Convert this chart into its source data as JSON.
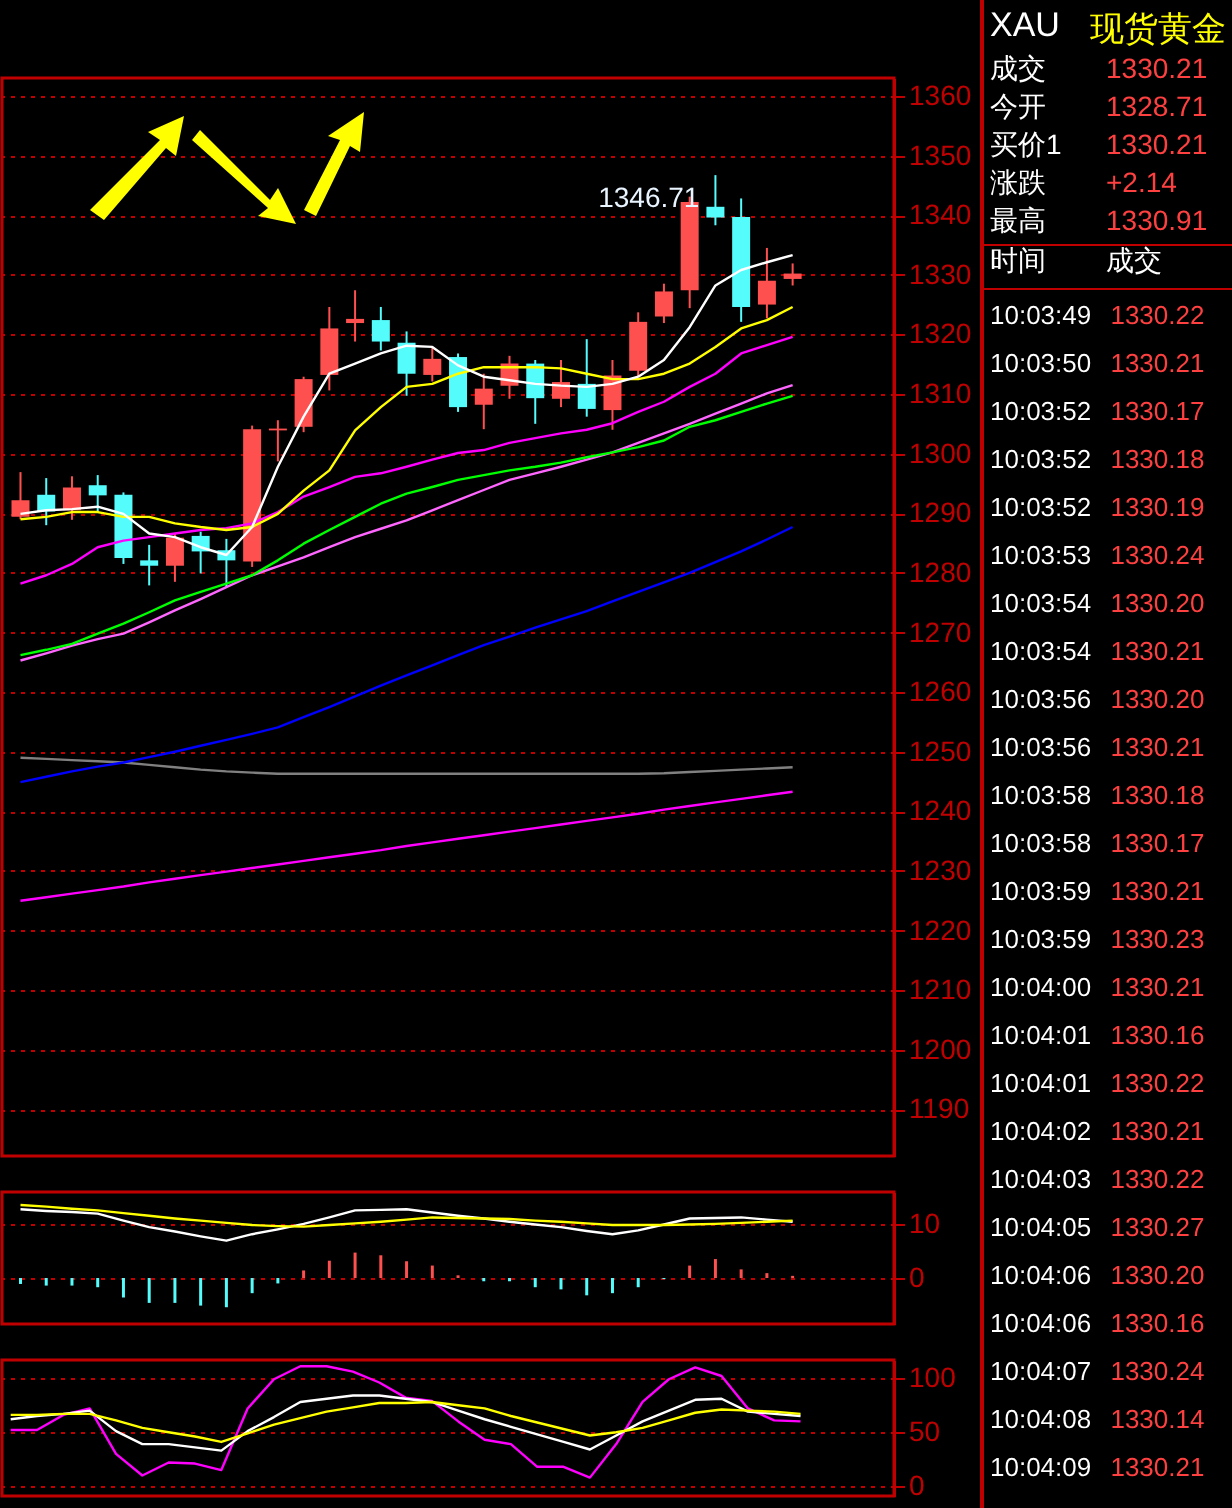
{
  "chart_data": [
    {
      "type": "candlestick",
      "categories": [
        null,
        null,
        null,
        null,
        null,
        null,
        null,
        null,
        null,
        null,
        null,
        null,
        null,
        null,
        null,
        null,
        null,
        null,
        null,
        null,
        null,
        null,
        null,
        null,
        null,
        null,
        null,
        null,
        null,
        null,
        null
      ],
      "ohlc": [
        [
          1289.4,
          1296.9,
          1289.0,
          1292.2
        ],
        [
          1293.1,
          1295.9,
          1288.0,
          1290.3
        ],
        [
          1290.5,
          1296.2,
          1288.9,
          1294.3
        ],
        [
          1294.7,
          1296.4,
          1290.2,
          1293.0
        ],
        [
          1293.1,
          1293.5,
          1281.5,
          1282.5
        ],
        [
          1282.1,
          1284.7,
          1277.9,
          1281.2
        ],
        [
          1281.2,
          1286.6,
          1278.5,
          1285.9
        ],
        [
          1286.2,
          1286.9,
          1279.9,
          1283.6
        ],
        [
          1283.8,
          1285.7,
          1277.6,
          1282.1
        ],
        [
          1281.9,
          1304.7,
          1281.0,
          1304.1
        ],
        [
          1303.9,
          1305.6,
          1298.7,
          1304.2
        ],
        [
          1304.5,
          1312.9,
          1303.6,
          1312.5
        ],
        [
          1313.2,
          1324.6,
          1310.6,
          1321.0
        ],
        [
          1321.9,
          1327.4,
          1318.8,
          1322.6
        ],
        [
          1322.4,
          1324.6,
          1317.3,
          1318.8
        ],
        [
          1318.6,
          1320.5,
          1309.7,
          1313.4
        ],
        [
          1313.2,
          1317.9,
          1312.1,
          1315.9
        ],
        [
          1316.2,
          1316.8,
          1307.0,
          1307.8
        ],
        [
          1308.2,
          1313.4,
          1304.1,
          1310.9
        ],
        [
          1311.4,
          1316.4,
          1309.2,
          1315.1
        ],
        [
          1315.1,
          1315.7,
          1305.0,
          1309.3
        ],
        [
          1309.2,
          1315.7,
          1307.8,
          1312.0
        ],
        [
          1311.7,
          1319.2,
          1306.2,
          1307.5
        ],
        [
          1307.3,
          1315.7,
          1304.0,
          1313.1
        ],
        [
          1313.9,
          1323.7,
          1312.8,
          1322.1
        ],
        [
          1323.0,
          1328.5,
          1321.9,
          1327.2
        ],
        [
          1327.4,
          1343.1,
          1324.4,
          1342.2
        ],
        [
          1341.4,
          1346.71,
          1338.3,
          1339.6
        ],
        [
          1339.7,
          1342.8,
          1322.1,
          1324.6
        ],
        [
          1325.0,
          1334.5,
          1322.7,
          1329.0
        ],
        [
          1329.3,
          1331.9,
          1328.2,
          1330.2
        ]
      ],
      "colors": [
        "#ff5050",
        "#54fcfc",
        "#ff5050",
        "#54fcfc",
        "#54fcfc",
        "#54fcfc",
        "#ff5050",
        "#54fcfc",
        "#54fcfc",
        "#ff5050",
        "#ff5050",
        "#ff5050",
        "#ff5050",
        "#ff5050",
        "#54fcfc",
        "#54fcfc",
        "#ff5050",
        "#54fcfc",
        "#ff5050",
        "#ff5050",
        "#54fcfc",
        "#ff5050",
        "#54fcfc",
        "#ff5050",
        "#ff5050",
        "#ff5050",
        "#ff5050",
        "#54fcfc",
        "#54fcfc",
        "#ff5050",
        "#ff5050"
      ],
      "ylim": [
        1182.2,
        1363
      ],
      "yticks": [
        1190,
        1200,
        1210,
        1220,
        1230,
        1240,
        1250,
        1260,
        1270,
        1280,
        1290,
        1300,
        1310,
        1320,
        1330,
        1340,
        1350,
        1360
      ],
      "tick_labels": "y",
      "grid": "y",
      "annotations": [
        "1346.71"
      ],
      "series": [
        {
          "type": "line",
          "color": "#808080",
          "values": [
            1249.0,
            1248.8,
            1248.6,
            1248.4,
            1248.2,
            1247.8,
            1247.4,
            1247.0,
            1246.7,
            1246.5,
            1246.3,
            1246.3,
            1246.3,
            1246.3,
            1246.3,
            1246.3,
            1246.3,
            1246.3,
            1246.3,
            1246.3,
            1246.3,
            1246.3,
            1246.3,
            1246.3,
            1246.3,
            1246.4,
            1246.6,
            1246.8,
            1247.0,
            1247.2,
            1247.4
          ]
        },
        {
          "type": "line",
          "color": "#ff00ff",
          "values": [
            1225.0,
            1225.6,
            1226.2,
            1226.8,
            1227.4,
            1228.1,
            1228.7,
            1229.3,
            1229.9,
            1230.5,
            1231.1,
            1231.7,
            1232.3,
            1232.9,
            1233.5,
            1234.2,
            1234.8,
            1235.4,
            1236.0,
            1236.6,
            1237.2,
            1237.8,
            1238.4,
            1239.0,
            1239.6,
            1240.3,
            1240.9,
            1241.5,
            1242.1,
            1242.7,
            1243.3
          ]
        },
        {
          "type": "line",
          "color": "#0000ff",
          "values": [
            1244.9,
            1245.8,
            1246.7,
            1247.5,
            1248.2,
            1249.1,
            1250.0,
            1251.0,
            1252.0,
            1253.0,
            1254.1,
            1255.8,
            1257.5,
            1259.3,
            1261.1,
            1262.8,
            1264.5,
            1266.2,
            1267.9,
            1269.3,
            1270.8,
            1272.2,
            1273.6,
            1275.2,
            1276.8,
            1278.4,
            1280.0,
            1281.8,
            1283.6,
            1285.6,
            1287.7
          ]
        },
        {
          "type": "line",
          "color": "#ff66ff",
          "values": [
            1265.3,
            1266.5,
            1267.8,
            1268.9,
            1269.8,
            1271.7,
            1273.7,
            1275.6,
            1277.6,
            1279.6,
            1281.1,
            1282.6,
            1284.3,
            1286.0,
            1287.4,
            1288.8,
            1290.5,
            1292.2,
            1293.9,
            1295.6,
            1296.7,
            1297.8,
            1299.0,
            1300.2,
            1301.8,
            1303.4,
            1305.0,
            1306.7,
            1308.4,
            1310.1,
            1311.5
          ]
        },
        {
          "type": "line",
          "color": "#00ff00",
          "values": [
            1266.2,
            1267.1,
            1268.1,
            1269.8,
            1271.5,
            1273.4,
            1275.4,
            1276.8,
            1278.2,
            1279.6,
            1282.1,
            1284.9,
            1287.2,
            1289.4,
            1291.6,
            1293.3,
            1294.4,
            1295.6,
            1296.4,
            1297.2,
            1297.8,
            1298.5,
            1299.4,
            1300.2,
            1301.1,
            1302.2,
            1304.5,
            1305.6,
            1307.0,
            1308.4,
            1309.7
          ]
        },
        {
          "type": "line",
          "color": "#ff00ff",
          "values": [
            1278.2,
            1279.6,
            1281.5,
            1284.3,
            1285.4,
            1286.0,
            1286.6,
            1287.2,
            1287.5,
            1288.3,
            1290.2,
            1292.8,
            1294.4,
            1296.1,
            1296.7,
            1297.8,
            1299.0,
            1300.1,
            1300.6,
            1301.8,
            1302.6,
            1303.4,
            1304.0,
            1305.1,
            1307.0,
            1308.7,
            1311.2,
            1313.4,
            1316.8,
            1318.2,
            1319.6
          ]
        },
        {
          "type": "line",
          "color": "#ffff00",
          "values": [
            1289.0,
            1289.4,
            1290.2,
            1290.2,
            1289.4,
            1289.4,
            1288.3,
            1287.7,
            1287.2,
            1287.7,
            1289.9,
            1293.8,
            1297.2,
            1303.9,
            1307.8,
            1311.2,
            1311.7,
            1313.4,
            1314.5,
            1314.5,
            1314.5,
            1314.3,
            1313.4,
            1312.5,
            1312.5,
            1313.4,
            1315.1,
            1317.9,
            1321.0,
            1322.4,
            1324.6
          ]
        },
        {
          "type": "line",
          "color": "#ffffff",
          "values": [
            1289.9,
            1290.5,
            1290.7,
            1291.1,
            1289.9,
            1286.6,
            1286.0,
            1284.3,
            1283.0,
            1287.7,
            1297.8,
            1306.2,
            1313.4,
            1315.1,
            1316.8,
            1318.1,
            1317.9,
            1314.8,
            1312.9,
            1312.3,
            1311.7,
            1311.4,
            1311.2,
            1311.7,
            1312.9,
            1315.7,
            1321.2,
            1328.2,
            1330.8,
            1332.1,
            1333.3
          ]
        }
      ]
    },
    {
      "type": "bar",
      "categories": [
        null,
        null,
        null,
        null,
        null,
        null,
        null,
        null,
        null,
        null,
        null,
        null,
        null,
        null,
        null,
        null,
        null,
        null,
        null,
        null,
        null,
        null,
        null,
        null,
        null,
        null,
        null,
        null,
        null,
        null,
        null
      ],
      "ylim": [
        -8.5,
        15.9
      ],
      "yticks": [
        0,
        10
      ],
      "tick_labels": "y",
      "grid": "y",
      "series": [
        {
          "type": "bar",
          "values": [
            -1.1,
            -1.4,
            -1.4,
            -1.7,
            -3.6,
            -4.6,
            -4.6,
            -5.1,
            -5.4,
            -2.8,
            -1.0,
            1.4,
            3.2,
            4.7,
            4.2,
            3.1,
            2.3,
            0.5,
            -0.6,
            -0.6,
            -1.7,
            -2.1,
            -3.2,
            -2.8,
            -1.7,
            -0.2,
            2.3,
            3.5,
            1.6,
            0.9,
            0.4
          ],
          "colors": [
            "#54fcfc",
            "#54fcfc",
            "#54fcfc",
            "#54fcfc",
            "#54fcfc",
            "#54fcfc",
            "#54fcfc",
            "#54fcfc",
            "#54fcfc",
            "#54fcfc",
            "#54fcfc",
            "#ff5050",
            "#ff5050",
            "#ff5050",
            "#ff5050",
            "#ff5050",
            "#ff5050",
            "#ff5050",
            "#54fcfc",
            "#54fcfc",
            "#54fcfc",
            "#54fcfc",
            "#54fcfc",
            "#54fcfc",
            "#54fcfc",
            "#54fcfc",
            "#ff5050",
            "#ff5050",
            "#ff5050",
            "#ff5050",
            "#ff5050"
          ]
        },
        {
          "type": "line",
          "color": "#ffffff",
          "values": [
            12.7,
            12.4,
            12.2,
            11.9,
            10.6,
            9.4,
            8.6,
            7.7,
            6.9,
            8.1,
            9.0,
            10.0,
            11.2,
            12.5,
            12.6,
            12.7,
            12.1,
            11.5,
            11.0,
            10.4,
            9.9,
            9.4,
            8.7,
            8.1,
            8.8,
            9.9,
            11.0,
            11.1,
            11.2,
            10.8,
            10.4
          ]
        },
        {
          "type": "line",
          "color": "#ffff00",
          "values": [
            13.5,
            13.2,
            12.8,
            12.5,
            12.0,
            11.5,
            11.0,
            10.6,
            10.2,
            9.8,
            9.6,
            9.5,
            9.8,
            10.1,
            10.4,
            10.8,
            11.2,
            11.1,
            11.0,
            10.9,
            10.6,
            10.4,
            10.1,
            9.8,
            9.8,
            9.8,
            9.9,
            10.0,
            10.2,
            10.4,
            10.6
          ]
        }
      ]
    },
    {
      "type": "line",
      "categories": [
        null,
        null,
        null,
        null,
        null,
        null,
        null,
        null,
        null,
        null,
        null,
        null,
        null,
        null,
        null,
        null,
        null,
        null,
        null,
        null,
        null,
        null,
        null,
        null,
        null,
        null,
        null,
        null,
        null,
        null,
        null
      ],
      "ylim": [
        -9,
        116.8
      ],
      "yticks": [
        0,
        50,
        100
      ],
      "tick_labels": "y",
      "grid": "y",
      "series": [
        {
          "type": "line",
          "color": "#ff00ff",
          "values": [
            52,
            52,
            66,
            72,
            30,
            10,
            22,
            21,
            15,
            72,
            99,
            111,
            111,
            106,
            96,
            82,
            79,
            60,
            43,
            39,
            18,
            18,
            8,
            39,
            78,
            99,
            110,
            102,
            72,
            61,
            60
          ]
        },
        {
          "type": "line",
          "color": "#ffffff",
          "values": [
            62,
            65,
            67,
            70,
            51,
            39,
            39,
            36,
            33,
            51,
            64,
            78,
            81,
            84,
            84,
            81,
            78,
            70,
            62,
            55,
            48,
            41,
            34,
            47,
            60,
            70,
            80,
            81,
            69,
            67,
            65
          ]
        },
        {
          "type": "line",
          "color": "#ffff00",
          "values": [
            66,
            66,
            67,
            67,
            61,
            54,
            50,
            46,
            41,
            49,
            57,
            63,
            69,
            73,
            77,
            77,
            78,
            75,
            72,
            65,
            59,
            53,
            47,
            50,
            54,
            61,
            68,
            71,
            70,
            69,
            67
          ]
        }
      ]
    },
    {
      "type": "other",
      "title": "XAU",
      "subtitle": "现货黄金",
      "annotations": [
        "成交",
        "1330.21",
        "今开",
        "1328.71",
        "买价1",
        "1330.21",
        "涨跌",
        "+2.14",
        "最高",
        "1330.91",
        "时间",
        "成交",
        "10:03:49 1330.22",
        "10:03:50 1330.21",
        "10:03:52 1330.17",
        "10:03:52 1330.18",
        "10:03:52 1330.19",
        "10:03:53 1330.24",
        "10:03:54 1330.20",
        "10:03:54 1330.21",
        "10:03:56 1330.20",
        "10:03:56 1330.21",
        "10:03:58 1330.18",
        "10:03:58 1330.17",
        "10:03:59 1330.21",
        "10:03:59 1330.23",
        "10:04:00 1330.21",
        "10:04:01 1330.16",
        "10:04:01 1330.22",
        "10:04:02 1330.21",
        "10:04:03 1330.22",
        "10:04:05 1330.27",
        "10:04:06 1330.20",
        "10:04:06 1330.16",
        "10:04:07 1330.24",
        "10:04:08 1330.14",
        "10:04:09 1330.21"
      ]
    }
  ]
}
